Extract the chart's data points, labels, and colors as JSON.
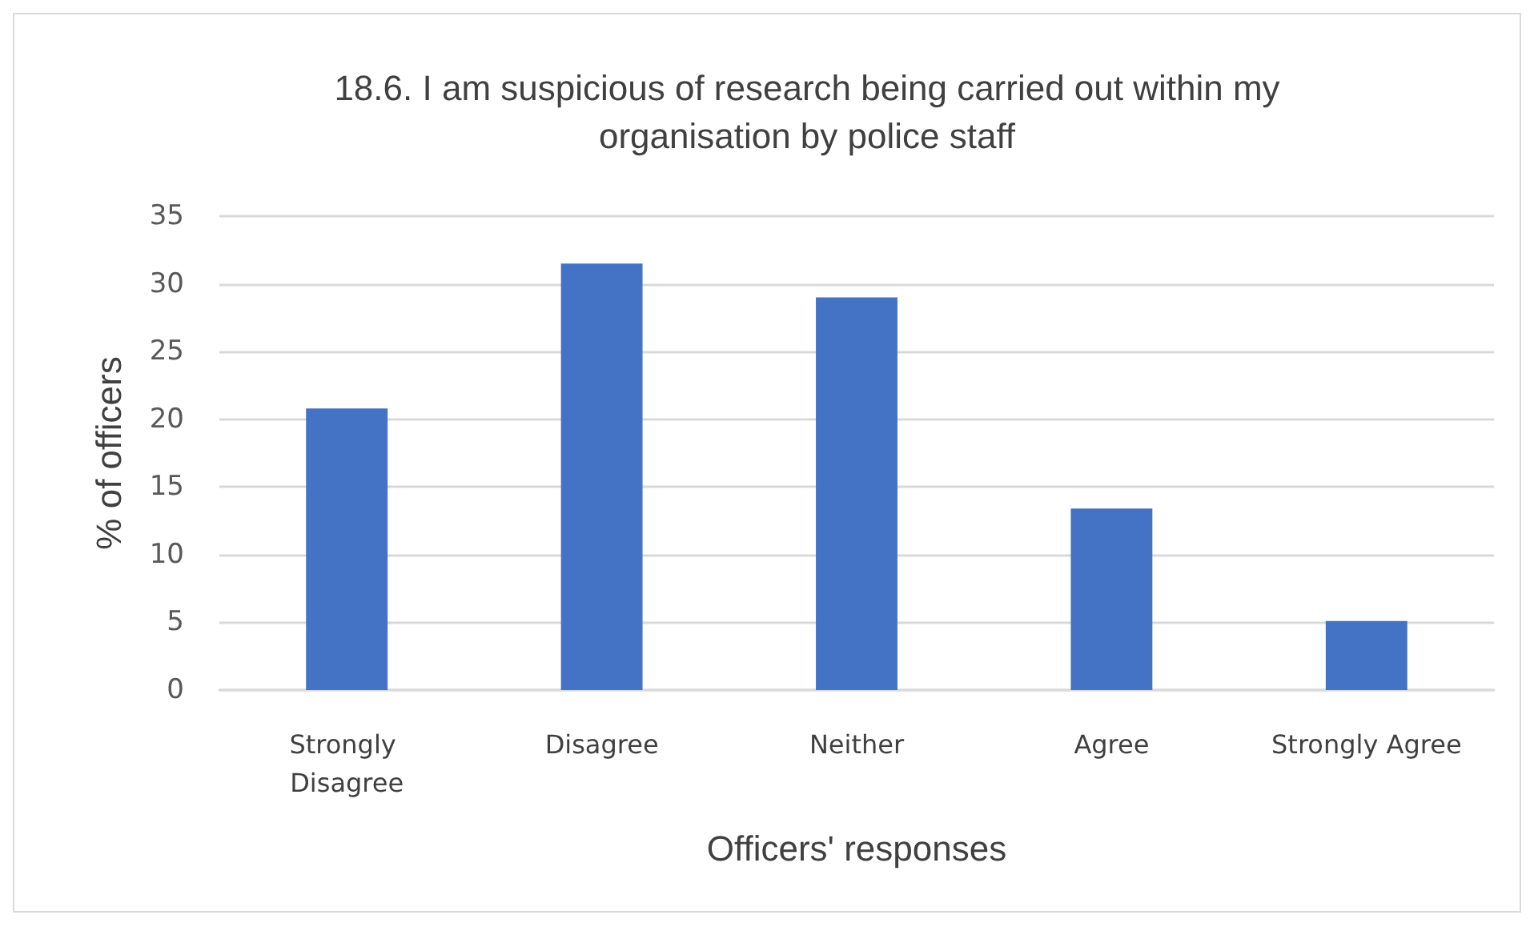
{
  "chart_data": {
    "type": "bar",
    "title": "18.6. I am suspicious of research being carried out within my\norganisation by police staff",
    "xlabel": "Officers' responses",
    "ylabel": "% of officers",
    "categories": [
      "Strongly Disagree",
      "Disagree",
      "Neither",
      "Agree",
      "Strongly Agree"
    ],
    "values": [
      20.8,
      31.5,
      29.0,
      13.4,
      5.1
    ],
    "color": "#4472c4",
    "ylim": [
      0,
      35
    ],
    "yticks": [
      0,
      5,
      10,
      15,
      20,
      25,
      30,
      35
    ],
    "grid": "y"
  }
}
